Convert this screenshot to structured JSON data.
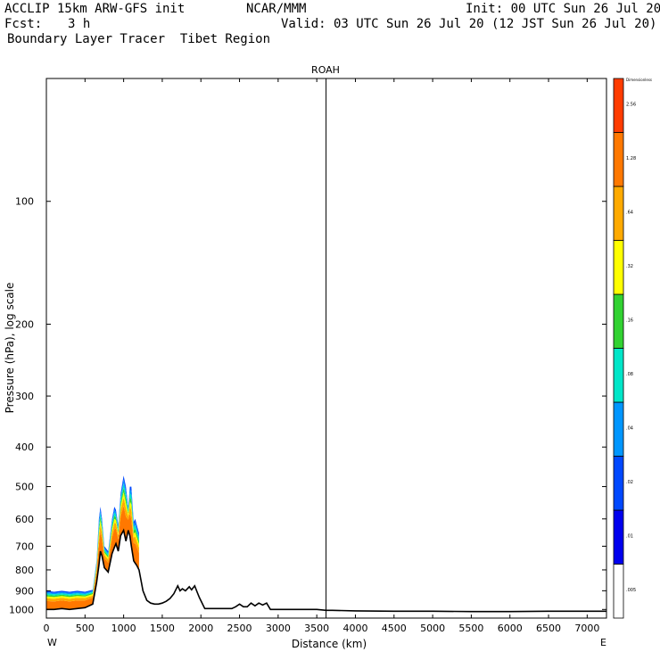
{
  "header": {
    "model": "ACCLIP 15km ARW-GFS init",
    "center": "NCAR/MMM",
    "init": "Init: 00 UTC Sun 26 Jul 20",
    "fcst_label": "Fcst:",
    "fcst_value": "3 h",
    "valid": "Valid: 03 UTC Sun 26 Jul 20 (12 JST Sun 26 Jul 20)",
    "subtitle": "Boundary Layer Tracer  Tibet Region"
  },
  "chart_data": {
    "type": "area",
    "title": "ROAH",
    "xlabel": "Distance (km)",
    "ylabel": "Pressure (hPa), log scale",
    "y_scale": "log",
    "xlim": [
      0,
      7250
    ],
    "ylim": [
      1050,
      50
    ],
    "x_ticks": [
      "0",
      "500",
      "1000",
      "1500",
      "2000",
      "2500",
      "3000",
      "3500",
      "4000",
      "4500",
      "5000",
      "5500",
      "6000",
      "6500",
      "7000"
    ],
    "y_ticks": [
      "100",
      "200",
      "300",
      "400",
      "500",
      "600",
      "700",
      "800",
      "900",
      "1000"
    ],
    "x_tick_values": [
      0,
      500,
      1000,
      1500,
      2000,
      2500,
      3000,
      3500,
      4000,
      4500,
      5000,
      5500,
      6000,
      6500,
      7000
    ],
    "y_tick_values": [
      100,
      200,
      300,
      400,
      500,
      600,
      700,
      800,
      900,
      1000
    ],
    "left_end_label": "W",
    "right_end_label": "E",
    "vertical_marker_km": 3620,
    "terrain": {
      "x": [
        0,
        100,
        200,
        300,
        400,
        500,
        600,
        650,
        680,
        700,
        720,
        750,
        800,
        850,
        880,
        900,
        930,
        960,
        1000,
        1030,
        1060,
        1080,
        1100,
        1130,
        1150,
        1170,
        1200,
        1250,
        1300,
        1350,
        1400,
        1450,
        1500,
        1550,
        1600,
        1650,
        1700,
        1730,
        1760,
        1800,
        1850,
        1880,
        1920,
        1950,
        1980,
        2050,
        2100,
        2200,
        2300,
        2400,
        2450,
        2500,
        2550,
        2600,
        2650,
        2700,
        2750,
        2800,
        2850,
        2900,
        3000,
        3500,
        3620,
        3700,
        4000,
        4500,
        5000,
        5500,
        6000,
        6500,
        7000,
        7250
      ],
      "p": [
        1000,
        1000,
        995,
        1000,
        995,
        990,
        970,
        860,
        780,
        720,
        740,
        790,
        810,
        730,
        705,
        690,
        720,
        660,
        640,
        680,
        640,
        660,
        700,
        760,
        770,
        780,
        800,
        900,
        950,
        965,
        970,
        970,
        965,
        955,
        940,
        915,
        875,
        900,
        890,
        900,
        880,
        895,
        875,
        905,
        935,
        995,
        995,
        995,
        995,
        995,
        985,
        970,
        985,
        985,
        965,
        980,
        965,
        975,
        965,
        1000,
        1000,
        1000,
        1005,
        1005,
        1008,
        1010,
        1010,
        1012,
        1012,
        1010,
        1010,
        1010
      ]
    },
    "tracer_top": {
      "x": [
        0,
        100,
        200,
        300,
        400,
        500,
        600,
        650,
        680,
        700,
        720,
        750,
        800,
        850,
        880,
        900,
        930,
        960,
        1000,
        1030,
        1060,
        1080,
        1100,
        1130,
        1150,
        1170,
        1200
      ],
      "p": [
        900,
        905,
        900,
        905,
        900,
        905,
        895,
        760,
        600,
        560,
        600,
        700,
        720,
        600,
        560,
        570,
        620,
        520,
        470,
        500,
        560,
        500,
        500,
        610,
        600,
        620,
        650
      ]
    },
    "colorbar": {
      "labels": [
        ".005",
        ".01",
        ".02",
        ".04",
        ".08",
        ".16",
        ".32",
        ".64",
        "1.28",
        "2.56",
        "Dimensionless"
      ],
      "colors": [
        "#ffffff",
        "#0000ee",
        "#0048ff",
        "#0096ff",
        "#00e6c8",
        "#32d232",
        "#ffff00",
        "#ffaa00",
        "#ff7800",
        "#ff3c00"
      ]
    }
  }
}
